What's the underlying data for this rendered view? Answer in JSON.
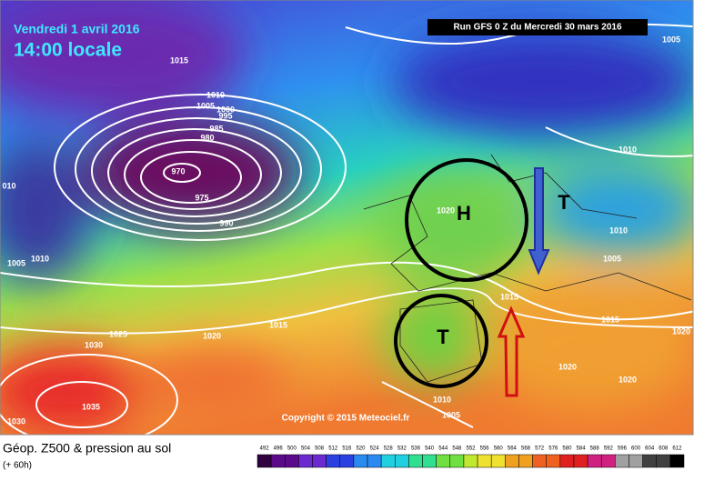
{
  "header": {
    "date": "Vendredi 1 avril 2016",
    "time": "14:00 locale",
    "run": "Run GFS 0 Z du Mercredi 30 mars 2016"
  },
  "map": {
    "isobar_labels": [
      "1005",
      "1015",
      "1010",
      "1005",
      "1000",
      "995",
      "985",
      "980",
      "970",
      "975",
      "990",
      "010",
      "1020",
      "1010",
      "1010",
      "1005",
      "1005",
      "1010",
      "1015",
      "1015",
      "1015",
      "1020",
      "1025",
      "1020",
      "1030",
      "1020",
      "1020",
      "1035",
      "1030",
      "1010",
      "1005"
    ],
    "symbols": [
      "H",
      "T",
      "T"
    ],
    "copyright": "Copyright © 2015 Meteociel.fr"
  },
  "footer": {
    "title": "Géop. Z500 & pression au sol",
    "lead": "(+ 60h)",
    "scale": [
      "492",
      "496",
      "500",
      "504",
      "508",
      "512",
      "516",
      "520",
      "524",
      "528",
      "532",
      "536",
      "540",
      "544",
      "548",
      "552",
      "556",
      "560",
      "564",
      "568",
      "572",
      "576",
      "580",
      "584",
      "588",
      "592",
      "596",
      "600",
      "604",
      "608",
      "612"
    ]
  }
}
